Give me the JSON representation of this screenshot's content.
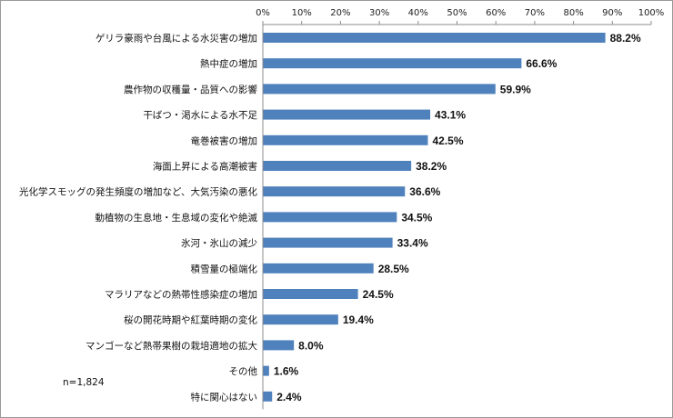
{
  "chart_data": {
    "type": "bar",
    "orientation": "horizontal",
    "categories": [
      "ゲリラ豪雨や台風による水災害の増加",
      "熱中症の増加",
      "農作物の収穫量・品質への影響",
      "干ばつ・渇水による水不足",
      "竜巻被害の増加",
      "海面上昇による高潮被害",
      "光化学スモッグの発生頻度の増加など、大気汚染の悪化",
      "動植物の生息地・生息域の変化や絶滅",
      "氷河・氷山の減少",
      "積雪量の極端化",
      "マラリアなどの熱帯性感染症の増加",
      "桜の開花時期や紅葉時期の変化",
      "マンゴーなど熱帯果樹の栽培適地の拡大",
      "その他",
      "特に関心はない"
    ],
    "values": [
      88.2,
      66.6,
      59.9,
      43.1,
      42.5,
      38.2,
      36.6,
      34.5,
      33.4,
      28.5,
      24.5,
      19.4,
      8.0,
      1.6,
      2.4
    ],
    "value_labels": [
      "88.2%",
      "66.6%",
      "59.9%",
      "43.1%",
      "42.5%",
      "38.2%",
      "36.6%",
      "34.5%",
      "33.4%",
      "28.5%",
      "24.5%",
      "19.4%",
      "8.0%",
      "1.6%",
      "2.4%"
    ],
    "xlim": [
      0,
      100
    ],
    "x_ticks": [
      "0%",
      "10%",
      "20%",
      "30%",
      "40%",
      "50%",
      "60%",
      "70%",
      "80%",
      "90%",
      "100%"
    ],
    "x_axis_position": "top",
    "grid": false,
    "bar_color": "#4f81bd",
    "note": "n=1,824"
  }
}
